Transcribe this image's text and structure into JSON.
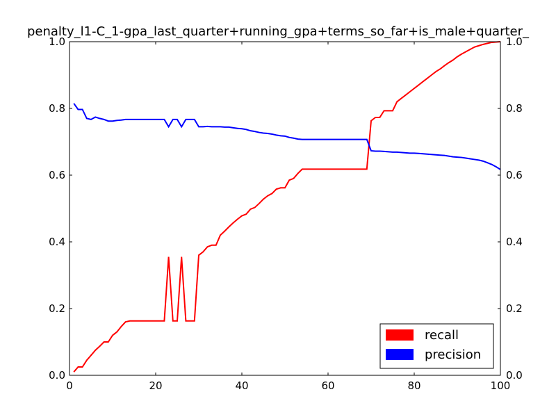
{
  "chart_data": {
    "type": "line",
    "title": "penalty_l1-C_1-gpa_last_quarter+running_gpa+terms_so_far+is_male+quarter_",
    "xlim": [
      0,
      100
    ],
    "ylim": [
      0,
      1
    ],
    "xticks": [
      "0",
      "20",
      "40",
      "60",
      "80",
      "100"
    ],
    "yticks_left": [
      "0.0",
      "0.2",
      "0.4",
      "0.6",
      "0.8",
      "1.0"
    ],
    "yticks_right": [
      "0.0",
      "0.2",
      "0.4",
      "0.6",
      "0.8",
      "1.0"
    ],
    "grid": false,
    "legend_placement": "lower-right",
    "series": [
      {
        "name": "recall",
        "color": "#ff0000",
        "axis": "left",
        "x": [
          1,
          2,
          3,
          4,
          5,
          6,
          7,
          8,
          9,
          10,
          11,
          12,
          13,
          14,
          15,
          16,
          17,
          18,
          19,
          20,
          21,
          22,
          23,
          24,
          25,
          26,
          27,
          28,
          29,
          30,
          31,
          32,
          33,
          34,
          35,
          36,
          37,
          38,
          39,
          40,
          41,
          42,
          43,
          44,
          45,
          46,
          47,
          48,
          49,
          50,
          51,
          52,
          53,
          54,
          55,
          56,
          57,
          58,
          59,
          60,
          61,
          62,
          63,
          64,
          65,
          66,
          67,
          68,
          69,
          70,
          71,
          72,
          73,
          74,
          75,
          76,
          77,
          78,
          79,
          80,
          81,
          82,
          83,
          84,
          85,
          86,
          87,
          88,
          89,
          90,
          91,
          92,
          93,
          94,
          95,
          96,
          97,
          98,
          99,
          100
        ],
        "values": [
          0.01,
          0.025,
          0.025,
          0.045,
          0.06,
          0.075,
          0.087,
          0.1,
          0.1,
          0.12,
          0.13,
          0.146,
          0.16,
          0.163,
          0.163,
          0.163,
          0.163,
          0.163,
          0.163,
          0.163,
          0.163,
          0.163,
          0.355,
          0.163,
          0.163,
          0.355,
          0.163,
          0.163,
          0.163,
          0.36,
          0.37,
          0.385,
          0.39,
          0.39,
          0.42,
          0.432,
          0.445,
          0.457,
          0.468,
          0.478,
          0.483,
          0.498,
          0.503,
          0.515,
          0.528,
          0.538,
          0.545,
          0.558,
          0.562,
          0.562,
          0.585,
          0.59,
          0.605,
          0.618,
          0.618,
          0.618,
          0.618,
          0.618,
          0.618,
          0.618,
          0.618,
          0.618,
          0.618,
          0.618,
          0.618,
          0.618,
          0.618,
          0.618,
          0.618,
          0.763,
          0.773,
          0.773,
          0.793,
          0.793,
          0.793,
          0.82,
          0.83,
          0.84,
          0.85,
          0.86,
          0.87,
          0.88,
          0.89,
          0.9,
          0.91,
          0.918,
          0.928,
          0.937,
          0.945,
          0.955,
          0.963,
          0.97,
          0.977,
          0.984,
          0.988,
          0.992,
          0.995,
          0.998,
          0.999,
          1.0
        ]
      },
      {
        "name": "precision",
        "color": "#0000ff",
        "axis": "left",
        "x": [
          1,
          2,
          3,
          4,
          5,
          6,
          7,
          8,
          9,
          10,
          11,
          12,
          13,
          14,
          15,
          16,
          17,
          18,
          19,
          20,
          21,
          22,
          23,
          24,
          25,
          26,
          27,
          28,
          29,
          30,
          31,
          32,
          33,
          34,
          35,
          36,
          37,
          38,
          39,
          40,
          41,
          42,
          43,
          44,
          45,
          46,
          47,
          48,
          49,
          50,
          51,
          52,
          53,
          54,
          55,
          56,
          57,
          58,
          59,
          60,
          61,
          62,
          63,
          64,
          65,
          66,
          67,
          68,
          69,
          70,
          71,
          72,
          73,
          74,
          75,
          76,
          77,
          78,
          79,
          80,
          81,
          82,
          83,
          84,
          85,
          86,
          87,
          88,
          89,
          90,
          91,
          92,
          93,
          94,
          95,
          96,
          97,
          98,
          99,
          100
        ],
        "values": [
          0.815,
          0.797,
          0.797,
          0.77,
          0.767,
          0.774,
          0.77,
          0.767,
          0.762,
          0.762,
          0.764,
          0.765,
          0.767,
          0.767,
          0.767,
          0.767,
          0.767,
          0.767,
          0.767,
          0.767,
          0.767,
          0.767,
          0.745,
          0.767,
          0.767,
          0.745,
          0.767,
          0.767,
          0.767,
          0.745,
          0.745,
          0.746,
          0.745,
          0.745,
          0.745,
          0.744,
          0.744,
          0.742,
          0.74,
          0.739,
          0.737,
          0.733,
          0.731,
          0.728,
          0.726,
          0.725,
          0.723,
          0.72,
          0.718,
          0.717,
          0.713,
          0.711,
          0.708,
          0.707,
          0.707,
          0.707,
          0.707,
          0.707,
          0.707,
          0.707,
          0.707,
          0.707,
          0.707,
          0.707,
          0.707,
          0.707,
          0.707,
          0.707,
          0.707,
          0.673,
          0.672,
          0.672,
          0.671,
          0.67,
          0.669,
          0.669,
          0.668,
          0.667,
          0.666,
          0.666,
          0.665,
          0.664,
          0.663,
          0.662,
          0.661,
          0.66,
          0.659,
          0.657,
          0.655,
          0.654,
          0.653,
          0.651,
          0.649,
          0.647,
          0.645,
          0.642,
          0.637,
          0.632,
          0.625,
          0.617
        ]
      }
    ]
  }
}
